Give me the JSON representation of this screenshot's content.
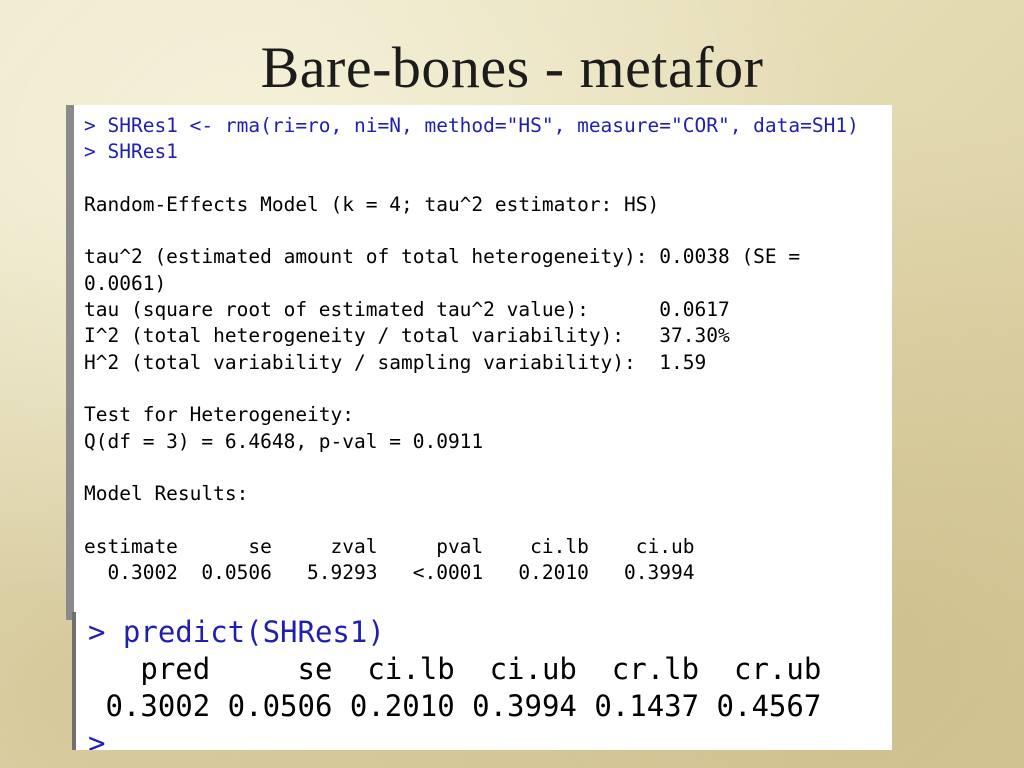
{
  "slide": {
    "title": "Bare-bones - metafor"
  },
  "console": {
    "line1": "> SHRes1 <- rma(ri=ro, ni=N, method=\"HS\", measure=\"COR\", data=SH1)",
    "line2": "> SHRes1",
    "model_header": "Random-Effects Model (k = 4; tau^2 estimator: HS)",
    "tau2_line": "tau^2 (estimated amount of total heterogeneity): 0.0038 (SE =",
    "tau2_se_cont": "0.0061)",
    "tau_line": "tau (square root of estimated tau^2 value):      0.0617",
    "i2_line": "I^2 (total heterogeneity / total variability):   37.30%",
    "h2_line": "H^2 (total variability / sampling variability):  1.59",
    "het_header": "Test for Heterogeneity:",
    "q_line": "Q(df = 3) = 6.4648, p-val = 0.0911",
    "results_header": "Model Results:",
    "results_cols": "estimate      se     zval     pval    ci.lb    ci.ub",
    "results_vals": "  0.3002  0.0506   5.9293   <.0001   0.2010   0.3994"
  },
  "predict": {
    "cmd": "> predict(SHRes1)",
    "cols": "   pred     se  ci.lb  ci.ub  cr.lb  cr.ub",
    "vals": " 0.3002 0.0506 0.2010 0.3994 0.1437 0.4567",
    "prompt": ">"
  }
}
